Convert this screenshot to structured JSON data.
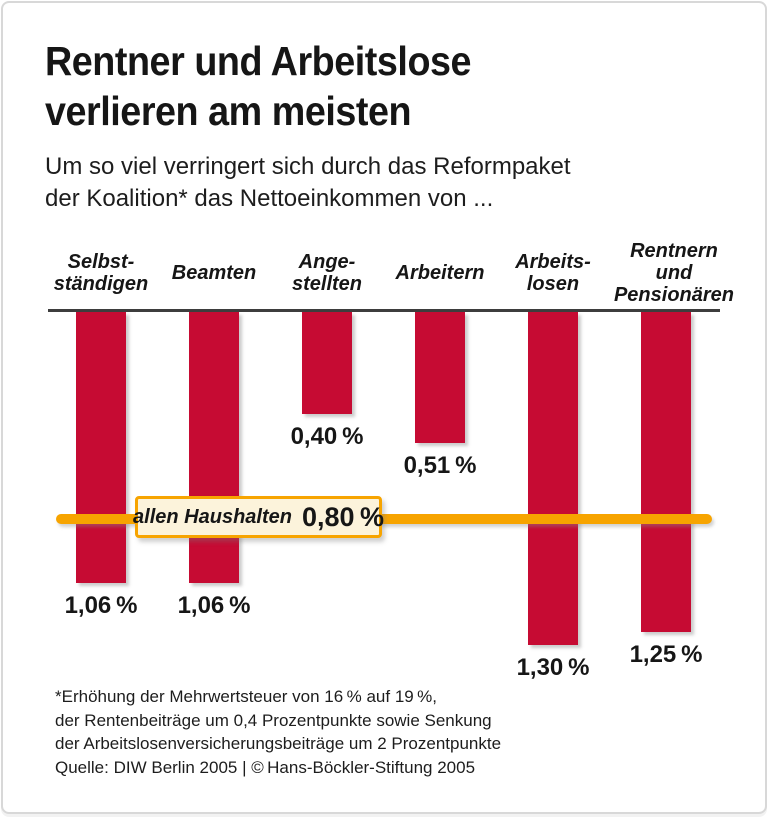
{
  "colors": {
    "bar_red": "#c60b33",
    "line_orange": "#f7a400",
    "box_cream": "#fcf3db",
    "baseline_gray": "#3d3d3d",
    "card_border": "#d8d8d8"
  },
  "header": {
    "title_line1": "Rentner und Arbeitslose",
    "title_line2": "verlieren am meisten",
    "subtitle_line1": "Um so viel verringert sich durch das Reformpaket",
    "subtitle_line2": "der Koalition* das Nettoeinkommen von ..."
  },
  "chart_data": {
    "type": "bar",
    "title": "Rentner und Arbeitslose verlieren am meisten",
    "subtitle": "Um so viel verringert sich durch das Reformpaket der Koalition* das Nettoeinkommen von ...",
    "unit": "%",
    "direction": "downward-from-baseline",
    "ylim": [
      0,
      1.4
    ],
    "grid": false,
    "legend": false,
    "categories": [
      "Selbstständigen",
      "Beamten",
      "Angestellten",
      "Arbeitern",
      "Arbeitslosen",
      "Rentnern und Pensionären"
    ],
    "values": [
      1.06,
      1.06,
      0.4,
      0.51,
      1.3,
      1.25
    ],
    "bars": [
      {
        "id": "selbststaendigen",
        "label_lines": [
          "Selbst-",
          "ständigen"
        ],
        "value": 1.06,
        "value_label": "1,06 %"
      },
      {
        "id": "beamten",
        "label_lines": [
          "Beamten"
        ],
        "value": 1.06,
        "value_label": "1,06 %"
      },
      {
        "id": "angestellten",
        "label_lines": [
          "Ange-",
          "stellten"
        ],
        "value": 0.4,
        "value_label": "0,40 %"
      },
      {
        "id": "arbeitern",
        "label_lines": [
          "Arbeitern"
        ],
        "value": 0.51,
        "value_label": "0,51 %"
      },
      {
        "id": "arbeitslosen",
        "label_lines": [
          "Arbeits-",
          "losen"
        ],
        "value": 1.3,
        "value_label": "1,30 %"
      },
      {
        "id": "rentnern-pensionaeren",
        "label_lines": [
          "Rentnern",
          "und",
          "Pensionären"
        ],
        "value": 1.25,
        "value_label": "1,25 %"
      }
    ],
    "reference_line": {
      "label": "allen Haushalten",
      "value": 0.8,
      "value_label": "0,80 %"
    }
  },
  "footnote": {
    "lines": [
      "*Erhöhung der Mehrwertsteuer von 16 % auf 19 %,",
      "der Rentenbeiträge um 0,4 Prozentpunkte sowie Senkung",
      "der Arbeitslosenversicherungsbeiträge um 2 Prozentpunkte",
      "Quelle: DIW Berlin 2005 | © Hans-Böckler-Stiftung 2005"
    ]
  }
}
